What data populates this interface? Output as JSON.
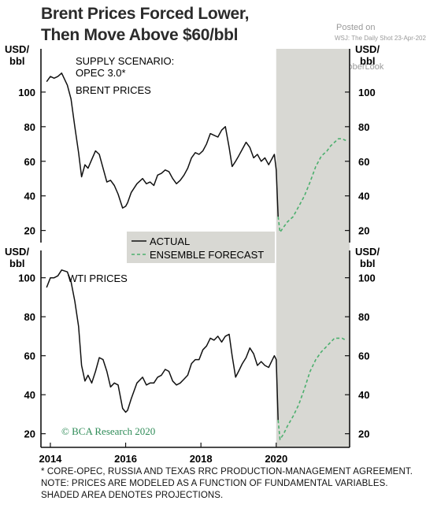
{
  "title_line1": "Brent Prices Forced Lower,",
  "title_line2": "Then Move Above $60/bbl",
  "watermark": {
    "posted": "Posted on",
    "source": "WSJ: The Daily Shot",
    "date": "23-Apr-2020",
    "handle": "@SoberLook"
  },
  "copyright": "© BCA Research 2020",
  "footnotes": [
    "* CORE-OPEC, RUSSIA AND TEXAS RRC PRODUCTION-MANAGEMENT AGREEMENT.",
    "NOTE: PRICES ARE MODELED AS A FUNCTION OF FUNDAMENTAL VARIABLES.",
    "SHADED AREA DENOTES PROJECTIONS."
  ],
  "colors": {
    "actual": "#111111",
    "forecast": "#4caf6e",
    "shade": "#d8d8d3",
    "copyright": "#2e8b57"
  },
  "chart_data": [
    {
      "type": "line",
      "panel": "top",
      "annotations": [
        "SUPPLY SCENARIO:",
        "OPEC 3.0*",
        "BRENT PRICES"
      ],
      "ylabel_left": [
        "USD/",
        "bbl"
      ],
      "ylabel_right": [
        "USD/",
        "bbl"
      ],
      "ylim": [
        13,
        125
      ],
      "yticks": [
        20,
        40,
        60,
        80,
        100
      ],
      "shaded_from": 2020.0,
      "series": [
        {
          "name": "ACTUAL",
          "style": "solid",
          "x": [
            2013.9,
            2014.0,
            2014.1,
            2014.2,
            2014.3,
            2014.45,
            2014.55,
            2014.65,
            2014.75,
            2014.83,
            2014.92,
            2015.0,
            2015.1,
            2015.2,
            2015.3,
            2015.4,
            2015.5,
            2015.6,
            2015.7,
            2015.8,
            2015.92,
            2016.0,
            2016.05,
            2016.15,
            2016.3,
            2016.45,
            2016.55,
            2016.65,
            2016.75,
            2016.85,
            2016.95,
            2017.05,
            2017.15,
            2017.25,
            2017.35,
            2017.45,
            2017.55,
            2017.65,
            2017.75,
            2017.85,
            2017.95,
            2018.05,
            2018.15,
            2018.25,
            2018.35,
            2018.45,
            2018.55,
            2018.65,
            2018.75,
            2018.83,
            2018.92,
            2019.0,
            2019.1,
            2019.2,
            2019.3,
            2019.4,
            2019.5,
            2019.6,
            2019.7,
            2019.8,
            2019.9,
            2019.95,
            2020.0,
            2020.05
          ],
          "y": [
            106,
            109,
            108,
            109,
            111,
            104,
            96,
            80,
            65,
            51,
            58,
            56,
            61,
            66,
            64,
            56,
            48,
            49,
            46,
            41,
            33,
            34,
            36,
            42,
            47,
            50,
            47,
            48,
            46,
            52,
            53,
            55,
            54,
            50,
            47,
            49,
            52,
            56,
            62,
            65,
            64,
            66,
            70,
            76,
            75,
            74,
            78,
            80,
            68,
            57,
            60,
            63,
            67,
            71,
            68,
            62,
            64,
            60,
            62,
            58,
            62,
            64,
            55,
            28
          ]
        },
        {
          "name": "ENSEMBLE FORECAST",
          "style": "dashed",
          "x": [
            2020.05,
            2020.1,
            2020.2,
            2020.3,
            2020.45,
            2020.6,
            2020.75,
            2020.9,
            2021.05,
            2021.2,
            2021.35,
            2021.45,
            2021.55,
            2021.65,
            2021.75,
            2021.85
          ],
          "y": [
            28,
            19,
            22,
            25,
            28,
            34,
            40,
            48,
            57,
            63,
            66,
            69,
            71,
            73,
            73,
            72
          ]
        }
      ]
    },
    {
      "type": "line",
      "panel": "bottom",
      "annotations": [
        "WTI PRICES"
      ],
      "ylabel_left": [
        "USD/",
        "bbl"
      ],
      "ylabel_right": [
        "USD/",
        "bbl"
      ],
      "ylim": [
        13,
        114
      ],
      "yticks": [
        20,
        40,
        60,
        80,
        100
      ],
      "shaded_from": 2020.0,
      "series": [
        {
          "name": "ACTUAL",
          "style": "solid",
          "x": [
            2013.9,
            2014.0,
            2014.1,
            2014.2,
            2014.3,
            2014.45,
            2014.55,
            2014.65,
            2014.75,
            2014.83,
            2014.92,
            2015.0,
            2015.1,
            2015.2,
            2015.3,
            2015.4,
            2015.5,
            2015.6,
            2015.7,
            2015.8,
            2015.92,
            2016.0,
            2016.05,
            2016.15,
            2016.3,
            2016.45,
            2016.55,
            2016.65,
            2016.75,
            2016.85,
            2016.95,
            2017.05,
            2017.15,
            2017.25,
            2017.35,
            2017.45,
            2017.55,
            2017.65,
            2017.75,
            2017.85,
            2017.95,
            2018.05,
            2018.15,
            2018.25,
            2018.35,
            2018.45,
            2018.55,
            2018.65,
            2018.75,
            2018.83,
            2018.92,
            2019.0,
            2019.1,
            2019.2,
            2019.3,
            2019.4,
            2019.5,
            2019.6,
            2019.7,
            2019.8,
            2019.9,
            2019.95,
            2020.0,
            2020.05
          ],
          "y": [
            95,
            100,
            100,
            101,
            104,
            103,
            98,
            88,
            75,
            55,
            47,
            50,
            46,
            52,
            59,
            58,
            52,
            44,
            46,
            45,
            33,
            31,
            32,
            38,
            46,
            49,
            45,
            46,
            46,
            49,
            50,
            53,
            52,
            47,
            45,
            46,
            48,
            50,
            56,
            58,
            58,
            63,
            65,
            69,
            68,
            70,
            67,
            70,
            71,
            60,
            49,
            52,
            56,
            59,
            64,
            61,
            55,
            57,
            55,
            54,
            58,
            60,
            58,
            27
          ]
        },
        {
          "name": "ENSEMBLE FORECAST",
          "style": "dashed",
          "x": [
            2020.05,
            2020.1,
            2020.2,
            2020.3,
            2020.45,
            2020.6,
            2020.75,
            2020.9,
            2021.05,
            2021.2,
            2021.35,
            2021.45,
            2021.55,
            2021.65,
            2021.75,
            2021.85
          ],
          "y": [
            27,
            17,
            20,
            24,
            29,
            35,
            43,
            52,
            58,
            62,
            65,
            67,
            69,
            69,
            69,
            68
          ]
        }
      ]
    }
  ],
  "legend": {
    "actual": "ACTUAL",
    "forecast": "ENSEMBLE FORECAST"
  },
  "xaxis": {
    "ticks": [
      2014,
      2016,
      2018,
      2020
    ],
    "labels": [
      "2014",
      "2016",
      "2018",
      "2020"
    ],
    "xlim": [
      2013.75,
      2021.95
    ]
  }
}
